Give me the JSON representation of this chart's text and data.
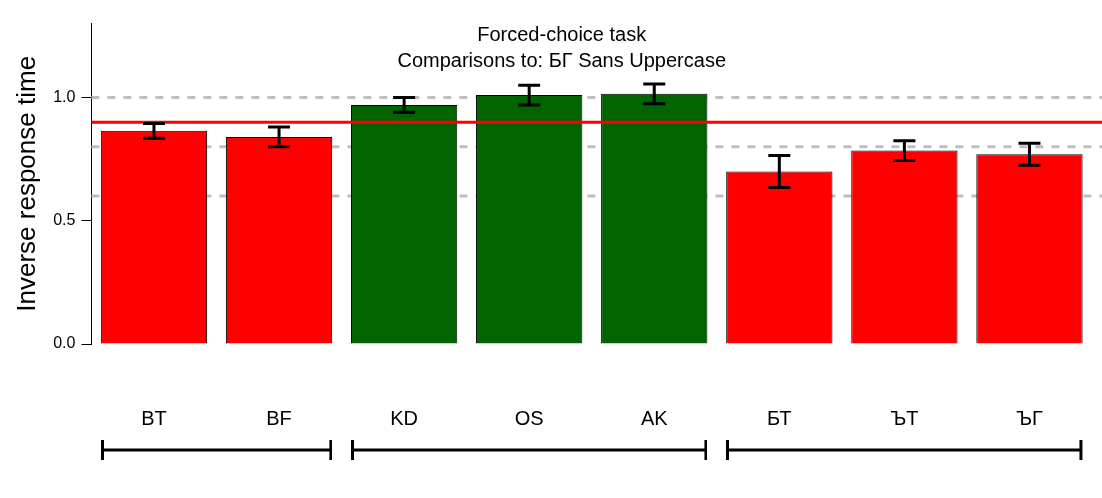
{
  "chart_data": {
    "type": "bar",
    "title": "Forced-choice task",
    "subtitle": "Comparisons to: БГ Sans Uppercase",
    "ylabel": "Inverse response time",
    "categories": [
      "BT",
      "BF",
      "KD",
      "OS",
      "AK",
      "БТ",
      "ЪТ",
      "ЪГ"
    ],
    "values": [
      0.865,
      0.84,
      0.97,
      1.01,
      1.015,
      0.7,
      0.785,
      0.77
    ],
    "errors": [
      0.03,
      0.04,
      0.03,
      0.04,
      0.04,
      0.065,
      0.04,
      0.045
    ],
    "colors": [
      "#ff0000",
      "#ff0000",
      "#006400",
      "#006400",
      "#006400",
      "#ff0000",
      "#ff0000",
      "#ff0000"
    ],
    "ylim": [
      0,
      1.3
    ],
    "yticks": [
      {
        "value": 0,
        "label": "0.0"
      },
      {
        "value": 0.5,
        "label": "0.5"
      },
      {
        "value": 1,
        "label": "1.0"
      }
    ],
    "ref_lines": [
      {
        "axis": "y",
        "value": 0.9,
        "color": "#ff0000",
        "line_style": "solid"
      },
      {
        "axis": "y",
        "value": 0.6,
        "color": "#bebebe",
        "line_style": "dashed"
      },
      {
        "axis": "y",
        "value": 0.8,
        "color": "#bebebe",
        "line_style": "dashed"
      },
      {
        "axis": "y",
        "value": 1.0,
        "color": "#bebebe",
        "line_style": "dashed"
      }
    ],
    "grid": false,
    "legend": false
  }
}
